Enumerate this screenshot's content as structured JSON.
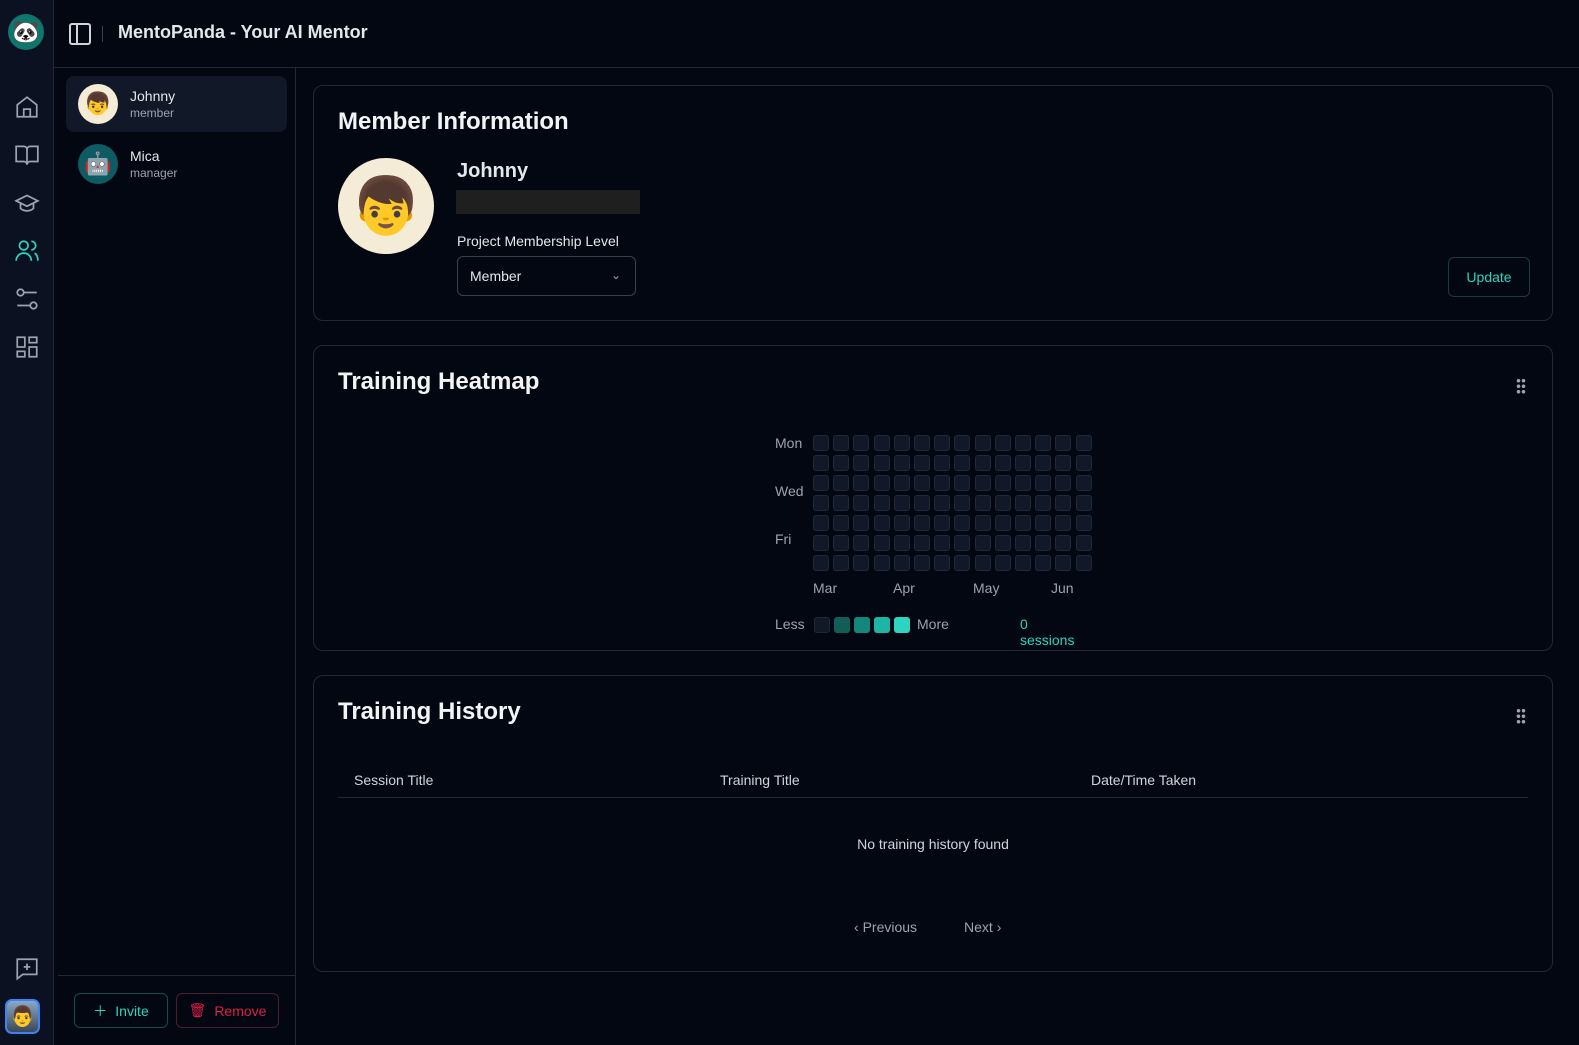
{
  "app": {
    "title": "MentoPanda - Your AI Mentor"
  },
  "rail": {
    "icons": [
      "home-icon",
      "book-open-icon",
      "graduation-cap-icon",
      "users-icon",
      "sliders-icon",
      "dashboard-grid-icon",
      "message-plus-icon"
    ],
    "active": "users-icon"
  },
  "members": [
    {
      "name": "Johnny",
      "role": "member"
    },
    {
      "name": "Mica",
      "role": "manager"
    }
  ],
  "list_actions": {
    "invite": "Invite",
    "remove": "Remove"
  },
  "member_info": {
    "title": "Member Information",
    "name": "Johnny",
    "level_label": "Project Membership Level",
    "level_value": "Member",
    "update": "Update"
  },
  "heatmap": {
    "title": "Training Heatmap",
    "day_labels": [
      "Mon",
      "Wed",
      "Fri"
    ],
    "month_labels": [
      "Mar",
      "Apr",
      "May",
      "Jun"
    ],
    "less": "Less",
    "more": "More",
    "sessions": "0 sessions",
    "weeks": 14,
    "days": 7,
    "values": "all 0",
    "legend_colors": [
      "#111827",
      "#115e59",
      "#14877c",
      "#1fb5a6",
      "#2dd4bf"
    ]
  },
  "history": {
    "title": "Training History",
    "columns": [
      "Session Title",
      "Training Title",
      "Date/Time Taken"
    ],
    "empty": "No training history found",
    "previous": "Previous",
    "next": "Next"
  },
  "colors": {
    "accent": "#2dd4bf",
    "danger": "#e11d48",
    "background": "#030712"
  }
}
